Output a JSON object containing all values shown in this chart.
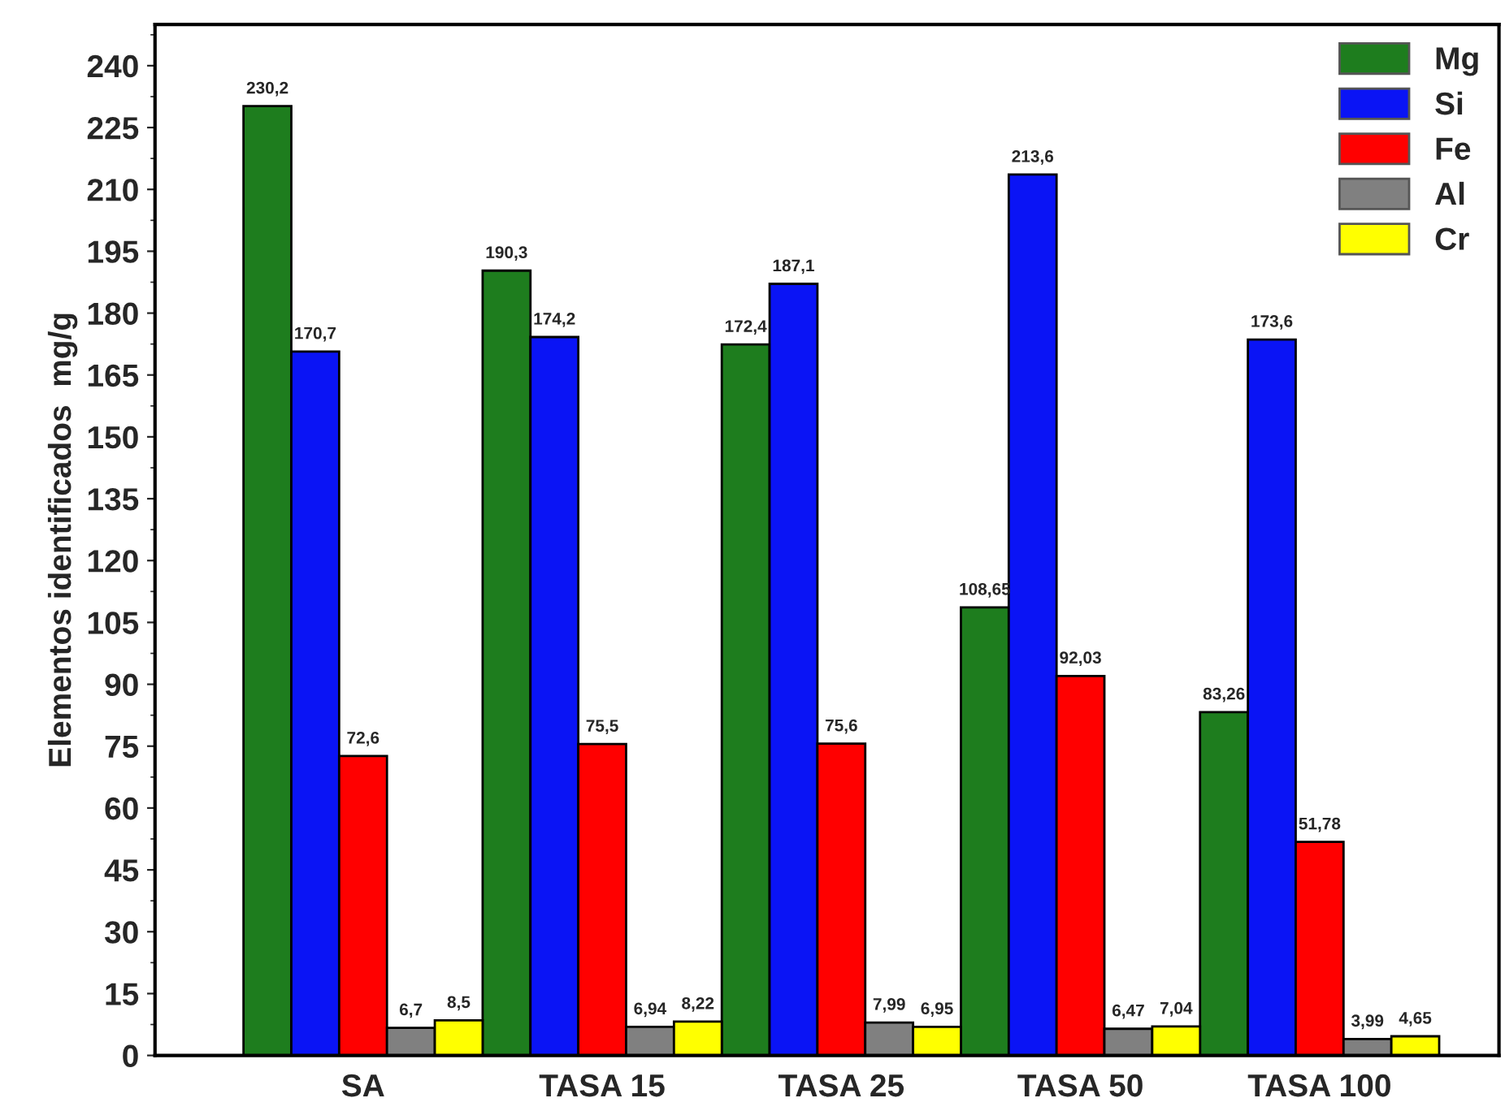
{
  "chart_data": {
    "type": "bar",
    "ylabel": "Elementos identificados  mg/g",
    "categories": [
      "SA",
      "TASA 15",
      "TASA 25",
      "TASA 50",
      "TASA 100"
    ],
    "series": [
      {
        "name": "Mg",
        "color": "#1e7d1e",
        "values": [
          230.2,
          190.3,
          172.4,
          108.65,
          83.26
        ],
        "value_labels": [
          "230,2",
          "190,3",
          "172,4",
          "108,65",
          "83,26"
        ]
      },
      {
        "name": "Si",
        "color": "#0a14f5",
        "values": [
          170.7,
          174.2,
          187.1,
          213.6,
          173.6
        ],
        "value_labels": [
          "170,7",
          "174,2",
          "187,1",
          "213,6",
          "173,6"
        ]
      },
      {
        "name": "Fe",
        "color": "#ff0000",
        "values": [
          72.6,
          75.5,
          75.6,
          92.03,
          51.78
        ],
        "value_labels": [
          "72,6",
          "75,5",
          "75,6",
          "92,03",
          "51,78"
        ]
      },
      {
        "name": "Al",
        "color": "#808080",
        "values": [
          6.7,
          6.94,
          7.99,
          6.47,
          3.99
        ],
        "value_labels": [
          "6,7",
          "6,94",
          "7,99",
          "6,47",
          "3,99"
        ]
      },
      {
        "name": "Cr",
        "color": "#ffff00",
        "values": [
          8.5,
          8.22,
          6.95,
          7.04,
          4.65
        ],
        "value_labels": [
          "8,5",
          "8,22",
          "6,95",
          "7,04",
          "4,65"
        ]
      }
    ],
    "ylim": [
      0,
      250
    ],
    "yticks": [
      0,
      15,
      30,
      45,
      60,
      75,
      90,
      105,
      120,
      135,
      150,
      165,
      180,
      195,
      210,
      225,
      240
    ],
    "legend": "top right",
    "grid": false
  }
}
